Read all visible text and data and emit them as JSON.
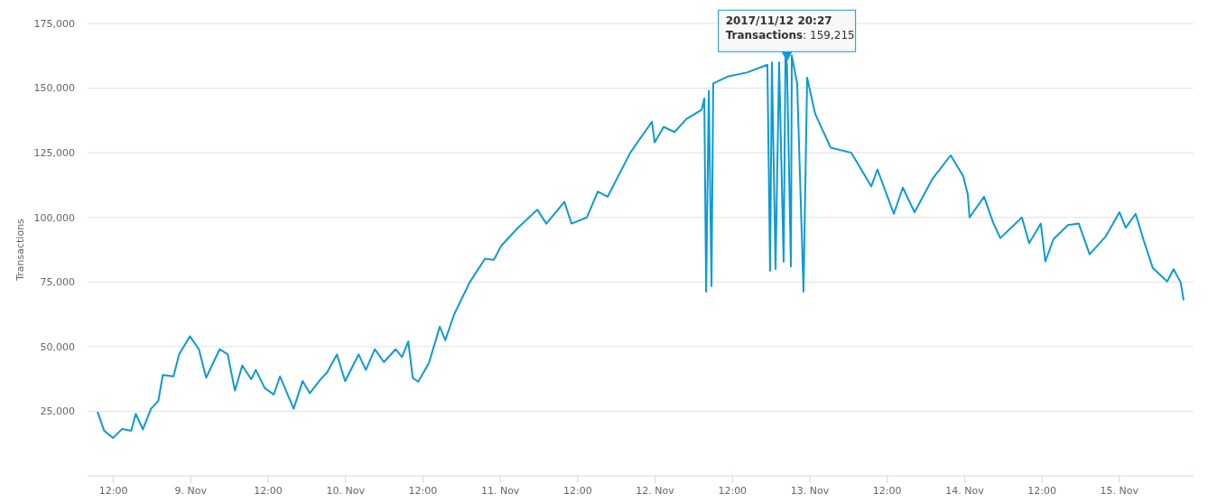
{
  "chart_data": {
    "type": "line",
    "ylabel": "Transactions",
    "grid": "y",
    "marker": "none",
    "line_style": "solid",
    "xlim": [
      "2017-11-08T08:00",
      "2017-11-15T11:30"
    ],
    "xticks": [
      {
        "value": "2017-11-08T12:00",
        "label": "12:00"
      },
      {
        "value": "2017-11-09T00:00",
        "label": "9. Nov"
      },
      {
        "value": "2017-11-09T12:00",
        "label": "12:00"
      },
      {
        "value": "2017-11-10T00:00",
        "label": "10. Nov"
      },
      {
        "value": "2017-11-10T12:00",
        "label": "12:00"
      },
      {
        "value": "2017-11-11T00:00",
        "label": "11. Nov"
      },
      {
        "value": "2017-11-11T12:00",
        "label": "12:00"
      },
      {
        "value": "2017-11-12T00:00",
        "label": "12. Nov"
      },
      {
        "value": "2017-11-12T12:00",
        "label": "12:00"
      },
      {
        "value": "2017-11-13T00:00",
        "label": "13. Nov"
      },
      {
        "value": "2017-11-13T12:00",
        "label": "12:00"
      },
      {
        "value": "2017-11-14T00:00",
        "label": "14. Nov"
      },
      {
        "value": "2017-11-14T12:00",
        "label": "12:00"
      },
      {
        "value": "2017-11-15T00:00",
        "label": "15. Nov"
      }
    ],
    "ylim": [
      0,
      175000
    ],
    "yticks": [
      {
        "value": 25000,
        "label": "25,000"
      },
      {
        "value": 50000,
        "label": "50,000"
      },
      {
        "value": 75000,
        "label": "75,000"
      },
      {
        "value": 100000,
        "label": "100,000"
      },
      {
        "value": 125000,
        "label": "125,000"
      },
      {
        "value": 150000,
        "label": "150,000"
      },
      {
        "value": 175000,
        "label": "175,000"
      }
    ],
    "annotations": [
      {
        "text": "2017/11/12 20:27\nTransactions: 159,215",
        "x": "2017-11-12T20:27",
        "y": 159215
      }
    ],
    "series": [
      {
        "color": "#0d9ad6",
        "x": [
          "2017-11-08T09:35",
          "2017-11-08T10:34",
          "2017-11-08T11:58",
          "2017-11-08T13:22",
          "2017-11-08T14:46",
          "2017-11-08T15:28",
          "2017-11-08T16:35",
          "2017-11-08T17:50",
          "2017-11-08T18:58",
          "2017-11-08T19:40",
          "2017-11-08T21:20",
          "2017-11-08T22:11",
          "2017-11-08T23:52",
          "2017-11-09T01:16",
          "2017-11-09T02:23",
          "2017-11-09T04:29",
          "2017-11-09T05:44",
          "2017-11-09T06:51",
          "2017-11-09T07:59",
          "2017-11-09T09:23",
          "2017-11-09T10:05",
          "2017-11-09T11:28",
          "2017-11-09T12:52",
          "2017-11-09T13:51",
          "2017-11-09T15:57",
          "2017-11-09T17:21",
          "2017-11-09T18:28",
          "2017-11-09T20:09",
          "2017-11-09T21:08",
          "2017-11-09T22:40",
          "2017-11-09T23:56",
          "2017-11-10T02:02",
          "2017-11-10T03:09",
          "2017-11-10T04:33",
          "2017-11-10T05:57",
          "2017-11-10T07:46",
          "2017-11-10T08:45",
          "2017-11-10T09:44",
          "2017-11-10T10:25",
          "2017-11-10T11:16",
          "2017-11-10T12:56",
          "2017-11-10T14:37",
          "2017-11-10T15:28",
          "2017-11-10T16:52",
          "2017-11-10T19:14",
          "2017-11-10T21:37",
          "2017-11-10T23:01",
          "2017-11-11T00:08",
          "2017-11-11T02:40",
          "2017-11-11T05:44",
          "2017-11-11T07:08",
          "2017-11-11T09:56",
          "2017-11-11T11:03",
          "2017-11-11T13:26",
          "2017-11-11T15:07",
          "2017-11-11T16:39",
          "2017-11-11T20:09",
          "2017-11-11T23:31",
          "2017-11-11T23:56",
          "2017-11-12T01:20",
          "2017-11-12T03:01",
          "2017-11-12T04:50",
          "2017-11-12T07:13",
          "2017-11-12T07:38",
          "2017-11-12T07:55",
          "2017-11-12T08:20",
          "2017-11-12T08:45",
          "2017-11-12T09:01",
          "2017-11-12T11:24",
          "2017-11-12T14:12",
          "2017-11-12T17:25",
          "2017-11-12T17:50",
          "2017-11-12T18:07",
          "2017-11-12T18:41",
          "2017-11-12T19:14",
          "2017-11-12T19:56",
          "2017-11-12T20:13",
          "2017-11-12T20:27",
          "2017-11-12T21:04",
          "2017-11-12T21:12",
          "2017-11-12T22:02",
          "2017-11-12T23:01",
          "2017-11-12T23:35",
          "2017-11-13T00:50",
          "2017-11-13T03:13",
          "2017-11-13T06:26",
          "2017-11-13T09:31",
          "2017-11-13T10:29",
          "2017-11-13T13:01",
          "2017-11-13T14:25",
          "2017-11-13T16:14",
          "2017-11-13T19:02",
          "2017-11-13T21:50",
          "2017-11-13T23:47",
          "2017-11-14T00:29",
          "2017-11-14T00:46",
          "2017-11-14T03:01",
          "2017-11-14T04:25",
          "2017-11-14T05:32",
          "2017-11-14T08:53",
          "2017-11-14T10:00",
          "2017-11-14T11:49",
          "2017-11-14T12:31",
          "2017-11-14T13:47",
          "2017-11-14T16:01",
          "2017-11-14T17:42",
          "2017-11-14T19:23",
          "2017-11-14T21:54",
          "2017-11-15T00:00",
          "2017-11-15T00:59",
          "2017-11-15T02:31",
          "2017-11-15T03:47",
          "2017-11-15T05:11",
          "2017-11-15T07:25",
          "2017-11-15T08:24",
          "2017-11-15T09:31",
          "2017-11-15T09:56"
        ],
        "values": [
          24500,
          17500,
          14700,
          18200,
          17500,
          24000,
          18000,
          26000,
          29000,
          39000,
          38500,
          47000,
          54000,
          49000,
          38000,
          49000,
          47000,
          33000,
          42700,
          37400,
          41000,
          34000,
          31500,
          38500,
          26000,
          36700,
          32000,
          37400,
          40000,
          47000,
          36700,
          47000,
          41000,
          49000,
          44000,
          49000,
          46000,
          52000,
          38000,
          36400,
          43700,
          57700,
          52500,
          62600,
          74800,
          84000,
          83600,
          89000,
          95800,
          103000,
          97600,
          106000,
          97600,
          100000,
          110000,
          108000,
          125000,
          137000,
          129000,
          135000,
          133000,
          138000,
          141600,
          146000,
          71300,
          149000,
          73400,
          151800,
          154600,
          156000,
          159000,
          79400,
          160000,
          80000,
          160000,
          82900,
          162000,
          159215,
          81000,
          162600,
          151800,
          71300,
          154000,
          140000,
          127000,
          125000,
          112000,
          118500,
          101400,
          111500,
          102000,
          115000,
          124000,
          116000,
          109000,
          100000,
          108000,
          98000,
          92000,
          100000,
          90000,
          97600,
          83000,
          91600,
          97000,
          97600,
          85700,
          92700,
          102000,
          96000,
          101400,
          91000,
          80400,
          75200,
          80000,
          74800,
          68200
        ]
      }
    ]
  }
}
